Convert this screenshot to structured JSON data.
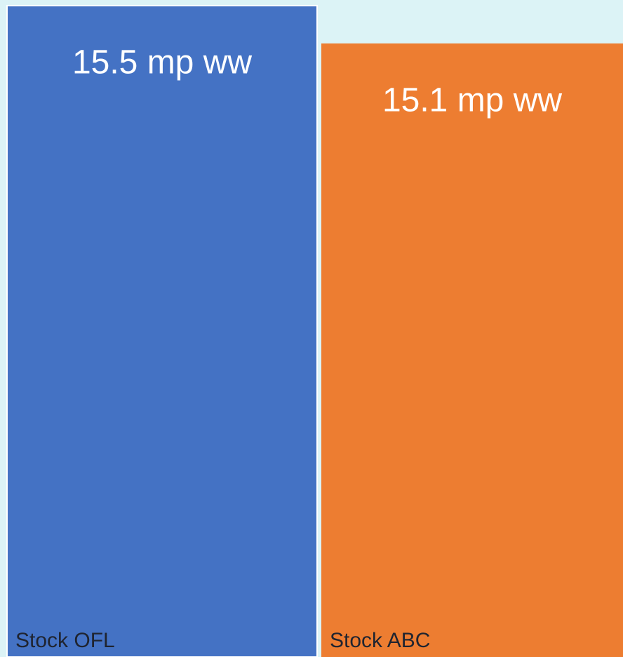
{
  "chart_data": {
    "type": "bar",
    "categories": [
      "Stock OFL",
      "Stock ABC"
    ],
    "values": [
      15.5,
      15.1
    ],
    "value_labels": [
      "15.5 mp ww",
      "15.1 mp ww"
    ],
    "colors": [
      "#4472c4",
      "#ed7d31"
    ],
    "ylim": [
      8.6,
      15.56
    ]
  }
}
